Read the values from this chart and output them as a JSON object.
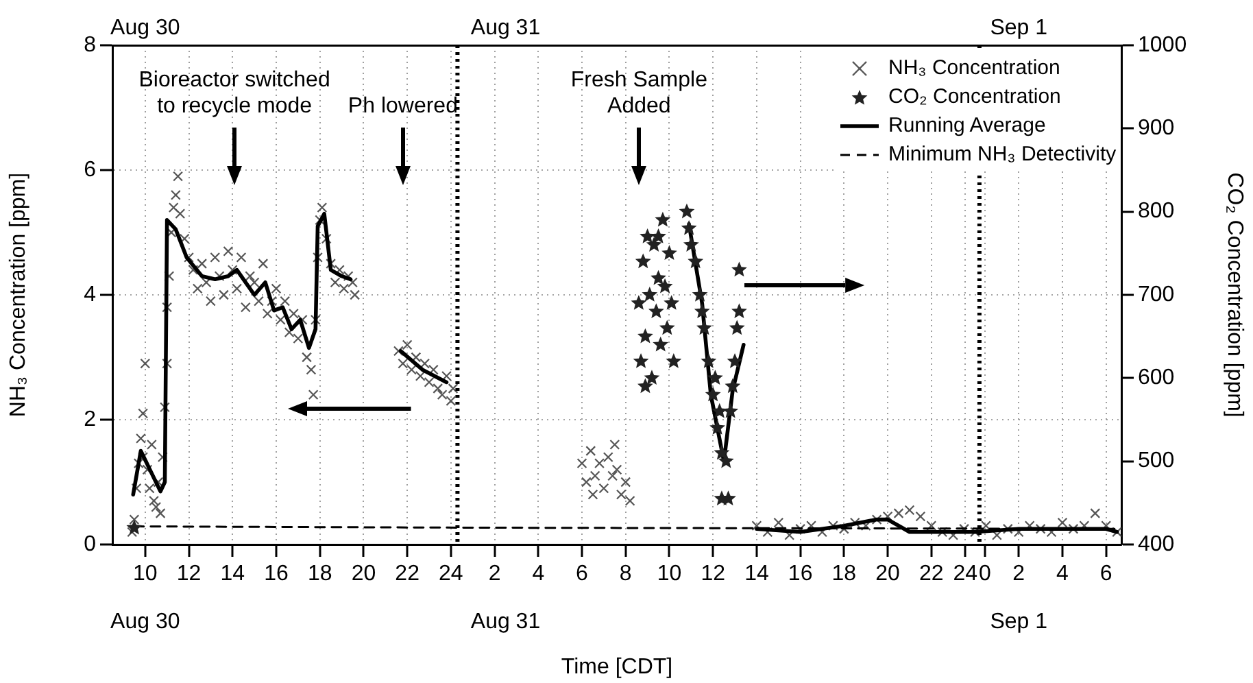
{
  "chart_data": {
    "type": "scatter",
    "xlabel": "Time [CDT]",
    "ylabel": "NH₃ Concentration [ppm]",
    "y2label": "CO₂ Concentration [ppm]",
    "xlim": [
      "--08-30T08:30",
      "--09-01T06:42"
    ],
    "xticks": [
      {
        "value": "--08-30T10:00",
        "label": "10"
      },
      {
        "value": "--08-30T12:00",
        "label": "12"
      },
      {
        "value": "--08-30T14:00",
        "label": "14"
      },
      {
        "value": "--08-30T16:00",
        "label": "16"
      },
      {
        "value": "--08-30T18:00",
        "label": "18"
      },
      {
        "value": "--08-30T20:00",
        "label": "20"
      },
      {
        "value": "--08-30T22:00",
        "label": "22"
      },
      {
        "value": "--08-31T00:00",
        "label": "24"
      },
      {
        "value": "--08-31T02:00",
        "label": "2"
      },
      {
        "value": "--08-31T04:00",
        "label": "4"
      },
      {
        "value": "--08-31T06:00",
        "label": "6"
      },
      {
        "value": "--08-31T08:00",
        "label": "8"
      },
      {
        "value": "--08-31T10:00",
        "label": "10"
      },
      {
        "value": "--08-31T12:00",
        "label": "12"
      },
      {
        "value": "--08-31T14:00",
        "label": "14"
      },
      {
        "value": "--08-31T16:00",
        "label": "16"
      },
      {
        "value": "--08-31T18:00",
        "label": "18"
      },
      {
        "value": "--08-31T20:00",
        "label": "20"
      },
      {
        "value": "--08-31T22:00",
        "label": "22"
      },
      {
        "value": "--08-31T23:33",
        "label": "24"
      },
      {
        "value": "--09-01T00:27",
        "label": "0"
      },
      {
        "value": "--09-01T02:00",
        "label": "2"
      },
      {
        "value": "--09-01T04:00",
        "label": "4"
      },
      {
        "value": "--09-01T06:00",
        "label": "6"
      }
    ],
    "x2lim": [
      "--08-30T08:30",
      "--09-01T06:42"
    ],
    "x2ticks": [
      {
        "value": "--08-30T10:00",
        "label": "Aug 30"
      },
      {
        "value": "--08-31T02:30",
        "label": "Aug 31"
      },
      {
        "value": "--09-01T02:00",
        "label": "Sep 1"
      }
    ],
    "ylim": [
      0,
      8
    ],
    "yticks": [
      0,
      2,
      4,
      6,
      8
    ],
    "y2lim": [
      400,
      1000
    ],
    "y2ticks": [
      400,
      500,
      600,
      700,
      800,
      900,
      1000
    ],
    "grid": true,
    "legend": "top right",
    "series": [
      {
        "name": "NH₃ Concentration",
        "type": "scatter",
        "marker": "cross",
        "color": "#555555",
        "x": [
          "--08-30T09:24",
          "--08-30T09:30",
          "--08-30T09:36",
          "--08-30T09:42",
          "--08-30T09:48",
          "--08-30T09:54",
          "--08-30T09:54",
          "--08-30T10:00",
          "--08-30T10:06",
          "--08-30T10:12",
          "--08-30T10:18",
          "--08-30T10:24",
          "--08-30T10:30",
          "--08-30T10:36",
          "--08-30T10:42",
          "--08-30T10:48",
          "--08-30T10:54",
          "--08-30T11:00",
          "--08-30T11:00",
          "--08-30T11:06",
          "--08-30T11:12",
          "--08-30T11:18",
          "--08-30T11:24",
          "--08-30T11:30",
          "--08-30T11:36",
          "--08-30T11:48",
          "--08-30T12:00",
          "--08-30T12:12",
          "--08-30T12:24",
          "--08-30T12:36",
          "--08-30T12:48",
          "--08-30T13:00",
          "--08-30T13:12",
          "--08-30T13:24",
          "--08-30T13:36",
          "--08-30T13:48",
          "--08-30T14:00",
          "--08-30T14:12",
          "--08-30T14:24",
          "--08-30T14:36",
          "--08-30T14:48",
          "--08-30T15:00",
          "--08-30T15:12",
          "--08-30T15:24",
          "--08-30T15:36",
          "--08-30T15:48",
          "--08-30T16:00",
          "--08-30T16:12",
          "--08-30T16:24",
          "--08-30T16:36",
          "--08-30T16:48",
          "--08-30T17:00",
          "--08-30T17:12",
          "--08-30T17:24",
          "--08-30T17:36",
          "--08-30T17:42",
          "--08-30T17:48",
          "--08-30T17:54",
          "--08-30T18:00",
          "--08-30T18:06",
          "--08-30T18:18",
          "--08-30T18:30",
          "--08-30T18:42",
          "--08-30T18:54",
          "--08-30T19:06",
          "--08-30T19:18",
          "--08-30T19:30",
          "--08-30T19:36",
          "--08-30T21:36",
          "--08-30T21:48",
          "--08-30T22:00",
          "--08-30T22:12",
          "--08-30T22:24",
          "--08-30T22:36",
          "--08-30T22:48",
          "--08-30T23:00",
          "--08-30T23:12",
          "--08-30T23:24",
          "--08-30T23:36",
          "--08-30T23:48",
          "--08-31T00:00",
          "--08-31T00:06",
          "--08-31T06:00",
          "--08-31T06:12",
          "--08-31T06:24",
          "--08-31T06:36",
          "--08-31T06:48",
          "--08-31T07:00",
          "--08-31T07:12",
          "--08-31T07:24",
          "--08-31T07:36",
          "--08-31T07:48",
          "--08-31T08:00",
          "--08-31T08:12",
          "--08-31T06:30",
          "--08-31T07:30",
          "--08-31T14:00",
          "--08-31T14:30",
          "--08-31T15:00",
          "--08-31T15:30",
          "--08-31T16:00",
          "--08-31T16:30",
          "--08-31T17:00",
          "--08-31T17:30",
          "--08-31T18:00",
          "--08-31T18:30",
          "--08-31T19:00",
          "--08-31T19:30",
          "--08-31T20:00",
          "--08-31T20:30",
          "--08-31T21:00",
          "--08-31T21:30",
          "--08-31T22:00",
          "--08-31T22:30",
          "--08-31T23:00",
          "--08-31T23:30",
          "--09-01T00:00",
          "--09-01T00:30",
          "--09-01T01:00",
          "--09-01T01:30",
          "--09-01T02:00",
          "--09-01T02:30",
          "--09-01T03:00",
          "--09-01T03:30",
          "--09-01T04:00",
          "--09-01T04:30",
          "--09-01T05:00",
          "--09-01T05:30",
          "--09-01T06:00",
          "--09-01T06:30"
        ],
        "values": [
          0.2,
          0.4,
          0.9,
          1.3,
          1.7,
          2.1,
          1.4,
          2.9,
          1.2,
          0.9,
          1.6,
          0.7,
          0.6,
          1.0,
          0.5,
          1.4,
          2.2,
          2.9,
          3.8,
          4.3,
          5.0,
          5.4,
          5.6,
          5.9,
          5.3,
          4.9,
          4.6,
          4.4,
          4.1,
          4.5,
          4.2,
          3.9,
          4.6,
          4.3,
          4.0,
          4.7,
          4.4,
          4.1,
          4.6,
          3.8,
          4.3,
          4.2,
          3.9,
          4.5,
          3.7,
          3.9,
          4.1,
          3.6,
          3.9,
          3.4,
          3.7,
          3.3,
          3.6,
          3.0,
          2.8,
          2.4,
          3.6,
          4.6,
          5.2,
          5.4,
          4.9,
          4.5,
          4.2,
          4.4,
          4.1,
          4.3,
          4.2,
          4.0,
          3.1,
          2.9,
          3.2,
          2.8,
          3.0,
          2.7,
          2.9,
          2.6,
          2.8,
          2.5,
          2.4,
          2.7,
          2.3,
          2.5,
          1.3,
          1.0,
          1.5,
          1.1,
          1.3,
          0.9,
          1.4,
          1.1,
          1.2,
          0.8,
          1.0,
          0.7,
          0.8,
          1.6,
          0.3,
          0.2,
          0.35,
          0.15,
          0.25,
          0.3,
          0.2,
          0.3,
          0.25,
          0.35,
          0.3,
          0.4,
          0.45,
          0.5,
          0.55,
          0.45,
          0.3,
          0.2,
          0.15,
          0.25,
          0.2,
          0.3,
          0.15,
          0.25,
          0.2,
          0.3,
          0.25,
          0.2,
          0.35,
          0.25,
          0.3,
          0.5,
          0.3,
          0.2
        ]
      },
      {
        "name": "CO₂ Concentration",
        "type": "scatter",
        "marker": "star",
        "axis": "y2",
        "color": "#222222",
        "x": [
          "--08-30T09:30",
          "--08-31T08:36",
          "--08-31T08:42",
          "--08-31T08:48",
          "--08-31T08:54",
          "--08-31T09:00",
          "--08-31T09:06",
          "--08-31T09:12",
          "--08-31T09:18",
          "--08-31T09:24",
          "--08-31T09:30",
          "--08-31T09:36",
          "--08-31T09:42",
          "--08-31T09:48",
          "--08-31T09:54",
          "--08-31T10:00",
          "--08-31T10:06",
          "--08-31T10:12",
          "--08-31T08:54",
          "--08-31T09:30",
          "--08-31T10:48",
          "--08-31T10:54",
          "--08-31T11:00",
          "--08-31T11:12",
          "--08-31T11:24",
          "--08-31T11:36",
          "--08-31T11:48",
          "--08-31T12:00",
          "--08-31T12:12",
          "--08-31T12:24",
          "--08-31T12:36",
          "--08-31T12:06",
          "--08-31T12:18",
          "--08-31T11:30",
          "--08-31T12:48",
          "--08-31T13:00",
          "--08-31T13:06",
          "--08-31T13:12",
          "--08-31T12:54",
          "--08-31T12:24",
          "--08-31T12:42",
          "--08-31T13:12"
        ],
        "values": [
          420,
          690,
          620,
          740,
          650,
          770,
          700,
          600,
          760,
          680,
          720,
          640,
          790,
          710,
          660,
          750,
          690,
          620,
          590,
          770,
          800,
          780,
          760,
          740,
          700,
          660,
          620,
          580,
          540,
          510,
          500,
          600,
          560,
          680,
          560,
          620,
          660,
          680,
          590,
          455,
          455,
          730
        ]
      },
      {
        "name": "Running Average",
        "type": "line",
        "marker": "none",
        "color": "#000000",
        "x": [
          "--08-30T09:27",
          "--08-30T09:48",
          "--08-30T10:42",
          "--08-30T10:54",
          "--08-30T11:00",
          "--08-30T11:24",
          "--08-30T11:54",
          "--08-30T12:36",
          "--08-30T13:12",
          "--08-30T13:48",
          "--08-30T14:12",
          "--08-30T14:36",
          "--08-30T15:00",
          "--08-30T15:30",
          "--08-30T15:54",
          "--08-30T16:18",
          "--08-30T16:42",
          "--08-30T17:06",
          "--08-30T17:30",
          "--08-30T17:48",
          "--08-30T17:54",
          "--08-30T18:12",
          "--08-30T18:30",
          "--08-30T19:00",
          "--08-30T19:24",
          "--08-30T20:00",
          "--08-30T21:42",
          "--08-30T22:42",
          "--08-30T23:48",
          "--08-31T02:00",
          "--08-31T14:00",
          "--08-31T16:00",
          "--08-31T18:00",
          "--08-31T19:30",
          "--08-31T20:00",
          "--08-31T21:00",
          "--08-31T22:00",
          "--09-01T00:00",
          "--09-01T02:00",
          "--09-01T04:00",
          "--09-01T06:00",
          "--09-01T06:30"
        ],
        "values": [
          0.8,
          1.5,
          0.85,
          1.0,
          5.2,
          5.05,
          4.6,
          4.3,
          4.25,
          4.3,
          4.4,
          4.2,
          4.0,
          4.2,
          3.75,
          3.8,
          3.45,
          3.6,
          3.15,
          3.45,
          5.1,
          5.3,
          4.4,
          4.3,
          4.25,
          null,
          3.1,
          2.8,
          2.6,
          null,
          0.25,
          0.2,
          0.3,
          0.4,
          0.4,
          0.2,
          0.2,
          0.2,
          0.25,
          0.25,
          0.25,
          0.2
        ]
      },
      {
        "type": "line",
        "marker": "none",
        "axis": "y2",
        "color": "#000000",
        "x": [
          "--08-31T10:54",
          "--08-31T11:30",
          "--08-31T11:54",
          "--08-31T12:30",
          "--08-31T12:54",
          "--08-31T13:24"
        ],
        "values": [
          785,
          690,
          580,
          500,
          585,
          640
        ]
      },
      {
        "name": "Minimum NH₃ Detectivity",
        "type": "line",
        "marker": "none",
        "line_style": "dashed",
        "color": "#000000",
        "x": [
          "--08-30T09:30",
          "--08-31T00:18",
          "--09-01T06:30"
        ],
        "values": [
          0.29,
          0.27,
          0.25
        ]
      }
    ],
    "ref_lines": [
      {
        "axis": "x",
        "value": "--08-31T00:18",
        "color": "#000000",
        "line_style": "dotted"
      },
      {
        "axis": "x",
        "value": "--09-01T00:12",
        "color": "#000000",
        "line_style": "dotted"
      }
    ],
    "annotations": [
      "Bioreactor switched\nto recycle mode",
      "Ph lowered",
      "Fresh Sample\nAdded"
    ]
  }
}
